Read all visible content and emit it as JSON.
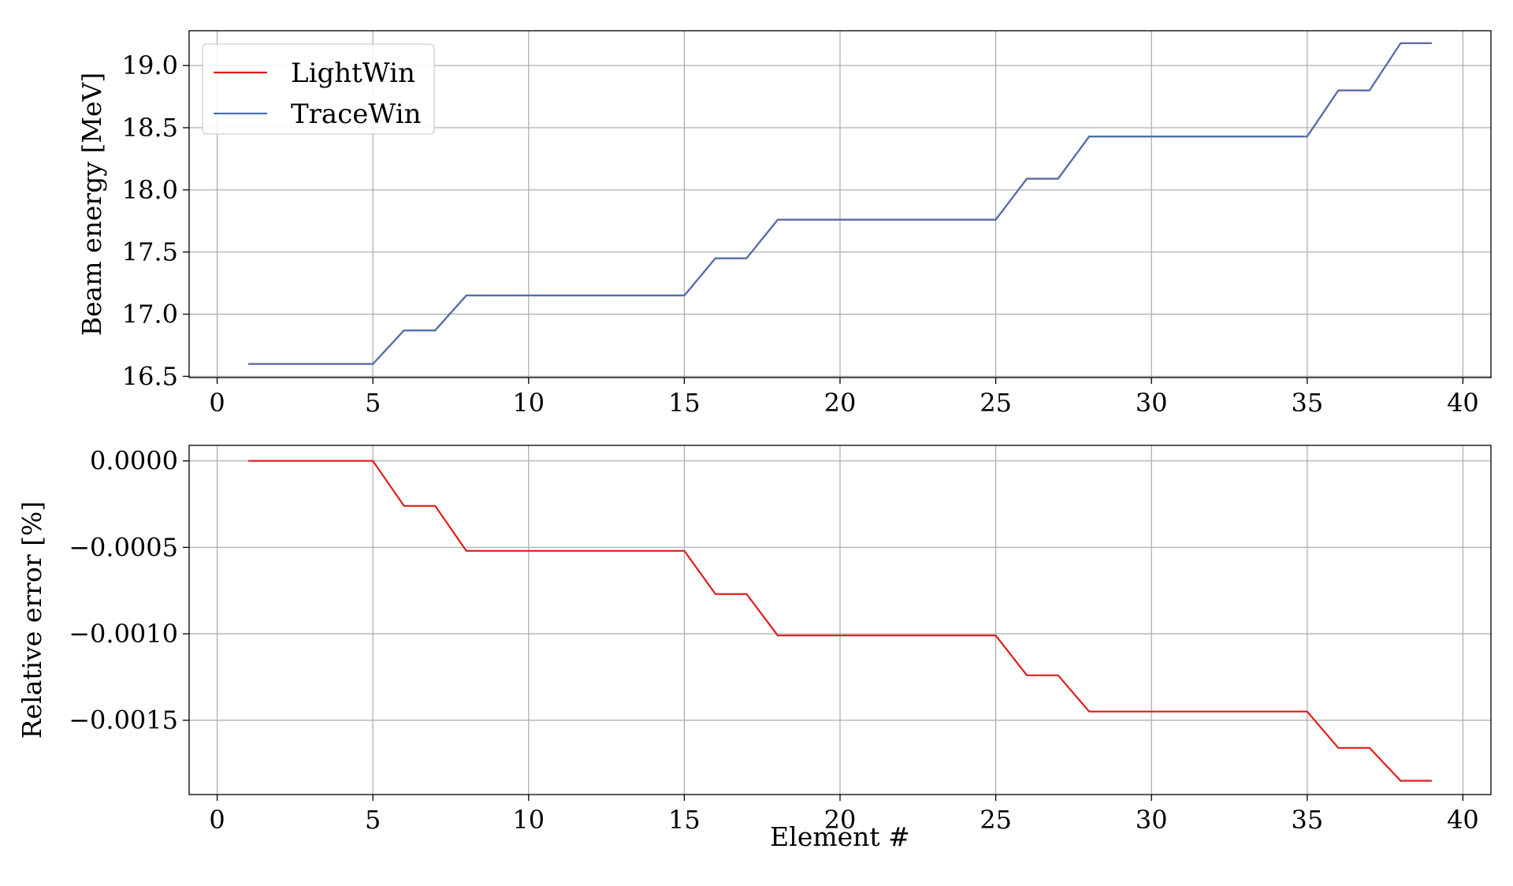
{
  "colors": {
    "lightwin": "#e31a1c",
    "tracewin": "#4c72b0",
    "grid": "#b0b0b0",
    "frame": "#000000"
  },
  "chart_data": [
    {
      "type": "line",
      "xlabel": "",
      "ylabel": "Beam energy [MeV]",
      "xlim": [
        -0.9,
        40.9
      ],
      "ylim": [
        16.49,
        19.28
      ],
      "xticks": [
        0,
        5,
        10,
        15,
        20,
        25,
        30,
        35,
        40
      ],
      "xtick_labels": [
        "0",
        "5",
        "10",
        "15",
        "20",
        "25",
        "30",
        "35",
        "40"
      ],
      "yticks": [
        16.5,
        17.0,
        17.5,
        18.0,
        18.5,
        19.0
      ],
      "ytick_labels": [
        "16.5",
        "17.0",
        "17.5",
        "18.0",
        "18.5",
        "19.0"
      ],
      "grid": true,
      "legend": {
        "position": "top-left",
        "entries": [
          "LightWin",
          "TraceWin"
        ]
      },
      "series": [
        {
          "name": "LightWin",
          "color_key": "lightwin",
          "x": [
            1,
            2,
            3,
            4,
            5,
            6,
            7,
            8,
            9,
            10,
            11,
            12,
            13,
            14,
            15,
            16,
            17,
            18,
            19,
            20,
            21,
            22,
            23,
            24,
            25,
            26,
            27,
            28,
            29,
            30,
            31,
            32,
            33,
            34,
            35,
            36,
            37,
            38,
            39
          ],
          "values": [
            16.6,
            16.6,
            16.6,
            16.6,
            16.6,
            16.87,
            16.87,
            17.15,
            17.15,
            17.15,
            17.15,
            17.15,
            17.15,
            17.15,
            17.15,
            17.45,
            17.45,
            17.76,
            17.76,
            17.76,
            17.76,
            17.76,
            17.76,
            17.76,
            17.76,
            18.09,
            18.09,
            18.43,
            18.43,
            18.43,
            18.43,
            18.43,
            18.43,
            18.43,
            18.43,
            18.8,
            18.8,
            19.18,
            19.18
          ]
        },
        {
          "name": "TraceWin",
          "color_key": "tracewin",
          "x": [
            1,
            2,
            3,
            4,
            5,
            6,
            7,
            8,
            9,
            10,
            11,
            12,
            13,
            14,
            15,
            16,
            17,
            18,
            19,
            20,
            21,
            22,
            23,
            24,
            25,
            26,
            27,
            28,
            29,
            30,
            31,
            32,
            33,
            34,
            35,
            36,
            37,
            38,
            39
          ],
          "values": [
            16.6,
            16.6,
            16.6,
            16.6,
            16.6,
            16.87,
            16.87,
            17.15,
            17.15,
            17.15,
            17.15,
            17.15,
            17.15,
            17.15,
            17.15,
            17.45,
            17.45,
            17.76,
            17.76,
            17.76,
            17.76,
            17.76,
            17.76,
            17.76,
            17.76,
            18.09,
            18.09,
            18.43,
            18.43,
            18.43,
            18.43,
            18.43,
            18.43,
            18.43,
            18.43,
            18.8,
            18.8,
            19.18,
            19.18
          ]
        }
      ]
    },
    {
      "type": "line",
      "xlabel": "Element #",
      "ylabel": "Relative error [%]",
      "xlim": [
        -0.9,
        40.9
      ],
      "ylim": [
        -0.00193,
        9e-05
      ],
      "xticks": [
        0,
        5,
        10,
        15,
        20,
        25,
        30,
        35,
        40
      ],
      "xtick_labels": [
        "0",
        "5",
        "10",
        "15",
        "20",
        "25",
        "30",
        "35",
        "40"
      ],
      "yticks": [
        0.0,
        -0.0005,
        -0.001,
        -0.0015
      ],
      "ytick_labels": [
        "0.0000",
        "−0.0005",
        "−0.0010",
        "−0.0015"
      ],
      "grid": true,
      "series": [
        {
          "color_key": "lightwin",
          "x": [
            1,
            2,
            3,
            4,
            5,
            6,
            7,
            8,
            9,
            10,
            11,
            12,
            13,
            14,
            15,
            16,
            17,
            18,
            19,
            20,
            21,
            22,
            23,
            24,
            25,
            26,
            27,
            28,
            29,
            30,
            31,
            32,
            33,
            34,
            35,
            36,
            37,
            38,
            39
          ],
          "values": [
            0,
            0,
            0,
            0,
            0,
            -0.00026,
            -0.00026,
            -0.00052,
            -0.00052,
            -0.00052,
            -0.00052,
            -0.00052,
            -0.00052,
            -0.00052,
            -0.00052,
            -0.00077,
            -0.00077,
            -0.00101,
            -0.00101,
            -0.00101,
            -0.00101,
            -0.00101,
            -0.00101,
            -0.00101,
            -0.00101,
            -0.00124,
            -0.00124,
            -0.00145,
            -0.00145,
            -0.00145,
            -0.00145,
            -0.00145,
            -0.00145,
            -0.00145,
            -0.00145,
            -0.00166,
            -0.00166,
            -0.00185,
            -0.00185
          ]
        }
      ]
    }
  ]
}
